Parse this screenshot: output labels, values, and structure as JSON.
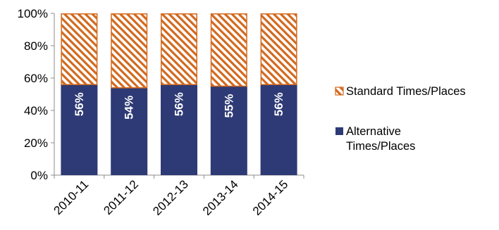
{
  "chart_data": {
    "type": "bar",
    "stacked": true,
    "categories": [
      "2010-11",
      "2011-12",
      "2012-13",
      "2013-14",
      "2014-15"
    ],
    "series": [
      {
        "name": "Alternative Times/Places",
        "values": [
          56,
          54,
          56,
          55,
          56
        ],
        "data_labels": [
          "56%",
          "54%",
          "56%",
          "55%",
          "56%"
        ],
        "color": "#2e3a75",
        "fill": "solid"
      },
      {
        "name": "Standard Times/Places",
        "values": [
          44,
          46,
          44,
          45,
          44
        ],
        "color": "#d2691e",
        "fill": "diagonal-hatch"
      }
    ],
    "ylim": [
      0,
      100
    ],
    "yticks": [
      0,
      20,
      40,
      60,
      80,
      100
    ],
    "ytick_labels": [
      "0%",
      "20%",
      "40%",
      "60%",
      "80%",
      "100%"
    ],
    "title": "",
    "xlabel": "",
    "ylabel": "",
    "grid": false,
    "legend_position": "right"
  }
}
